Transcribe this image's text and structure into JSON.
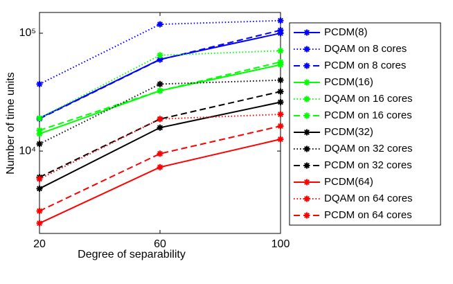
{
  "chart_data": {
    "type": "line",
    "xlabel": "Degree of separability",
    "ylabel": "Number of time units",
    "x": [
      20,
      60,
      100
    ],
    "xlim": [
      20,
      100
    ],
    "xticks": [
      20,
      60,
      100
    ],
    "ylim": [
      2000,
      150000
    ],
    "ylog": true,
    "yticks": [
      {
        "value": 10000,
        "label": "10⁴"
      },
      {
        "value": 100000,
        "label": "10⁵"
      }
    ],
    "legend": "outside-right",
    "series": [
      {
        "name": "PCDM(8)",
        "color": "#0000ff",
        "linestyle": "solid",
        "values": [
          19000,
          60000,
          100000
        ]
      },
      {
        "name": "DQAM on 8 cores",
        "color": "#0000ff",
        "linestyle": "dotted",
        "values": [
          37000,
          119000,
          128000
        ]
      },
      {
        "name": "PCDM on 8 cores",
        "color": "#0000ff",
        "linestyle": "dashed",
        "values": [
          18800,
          59700,
          106000
        ]
      },
      {
        "name": "PCDM(16)",
        "color": "#00ff00",
        "linestyle": "solid",
        "values": [
          14000,
          32500,
          54000
        ]
      },
      {
        "name": "DQAM on 16 cores",
        "color": "#00ff00",
        "linestyle": "dotted",
        "values": [
          19000,
          65000,
          71000
        ]
      },
      {
        "name": "PCDM on 16 cores",
        "color": "#00ff00",
        "linestyle": "dashed",
        "values": [
          15000,
          32500,
          57000
        ]
      },
      {
        "name": "PCDM(32)",
        "color": "#000000",
        "linestyle": "solid",
        "values": [
          4800,
          15800,
          26000
        ]
      },
      {
        "name": "DQAM on 32 cores",
        "color": "#000000",
        "linestyle": "dotted",
        "values": [
          11500,
          37000,
          40000
        ]
      },
      {
        "name": "PCDM on 32 cores",
        "color": "#000000",
        "linestyle": "dashed",
        "values": [
          6000,
          18700,
          32000
        ]
      },
      {
        "name": "PCDM(64)",
        "color": "#ff0000",
        "linestyle": "solid",
        "values": [
          2440,
          7300,
          12600
        ]
      },
      {
        "name": "DQAM on 64 cores",
        "color": "#ff0000",
        "linestyle": "dotted",
        "values": [
          5800,
          18700,
          20500
        ]
      },
      {
        "name": "PCDM on 64 cores",
        "color": "#ff0000",
        "linestyle": "dashed",
        "values": [
          3100,
          9500,
          16300
        ]
      }
    ]
  }
}
